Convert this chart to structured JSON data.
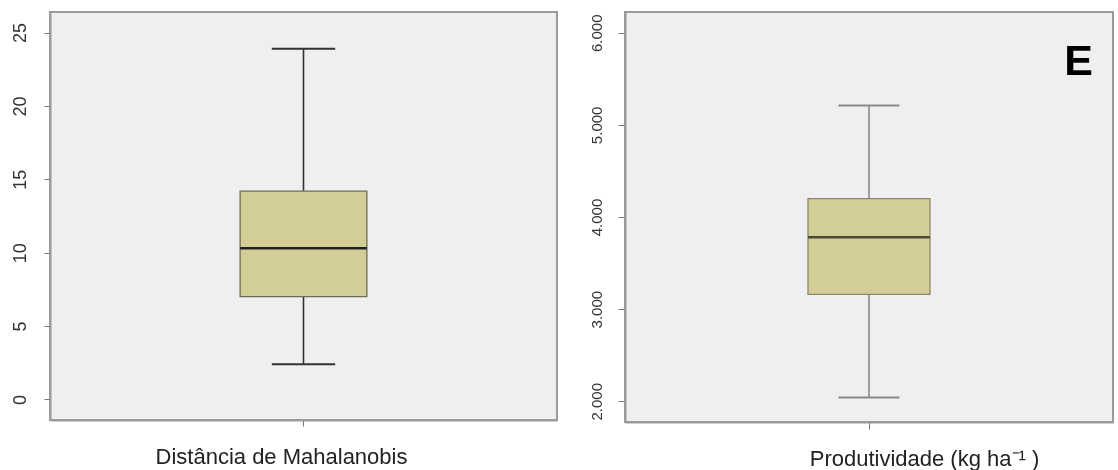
{
  "chart_data": [
    {
      "type": "box",
      "xlabel": "Distância de Mahalanobis",
      "boxes": [
        {
          "low": 2.4,
          "q1": 7.0,
          "median": 10.3,
          "q3": 14.2,
          "high": 23.9
        }
      ],
      "color": "#d3cd98",
      "ylim": [
        -1.4,
        26.4
      ],
      "yticks": [
        0,
        5,
        10,
        15,
        20,
        25
      ]
    },
    {
      "type": "box",
      "xlabel": "Produtividade (kg ha⁻¹ )",
      "boxes": [
        {
          "low": 2040,
          "q1": 3160,
          "median": 3780,
          "q3": 4200,
          "high": 5210
        }
      ],
      "color": "#d3cd98",
      "ylim": [
        1775,
        6225
      ],
      "yticks": [
        {
          "value": 2000,
          "label": "2.000"
        },
        {
          "value": 3000,
          "label": "3.000"
        },
        {
          "value": 4000,
          "label": "4.000"
        },
        {
          "value": 5000,
          "label": "5.000"
        },
        {
          "value": 6000,
          "label": "6.000"
        }
      ],
      "annotations": [
        "E"
      ]
    }
  ]
}
